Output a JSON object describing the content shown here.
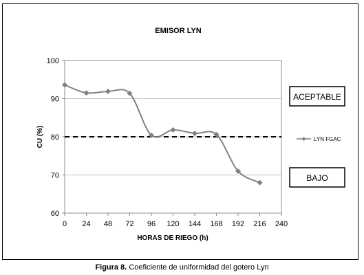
{
  "caption": {
    "label": "Figura 8.",
    "text": " Coeficiente de uniformidad del gotero Lyn"
  },
  "chart_data": {
    "type": "line",
    "title": "EMISOR LYN",
    "xlabel": "HORAS DE RIEGO (h)",
    "ylabel": "CU (%)",
    "xlim": [
      0,
      240
    ],
    "ylim": [
      60,
      100
    ],
    "xticks": [
      0,
      24,
      48,
      72,
      96,
      120,
      144,
      168,
      192,
      216,
      240
    ],
    "yticks": [
      60,
      70,
      80,
      90,
      100
    ],
    "grid": "horizontal",
    "legend_position": "right",
    "series": [
      {
        "name": "LYN FGAC",
        "color": "#808080",
        "marker": "diamond",
        "smooth": true,
        "x": [
          0,
          24,
          48,
          72,
          96,
          120,
          144,
          168,
          192,
          216
        ],
        "y": [
          93.6,
          91.5,
          91.9,
          91.4,
          80.4,
          81.8,
          80.9,
          80.6,
          71.0,
          68.0
        ]
      }
    ],
    "reference_line": {
      "y": 80,
      "style": "dashed",
      "color": "#000000"
    },
    "annotations": [
      {
        "text": "ACEPTABLE",
        "boxed": true
      },
      {
        "text": "BAJO",
        "boxed": true
      }
    ]
  }
}
